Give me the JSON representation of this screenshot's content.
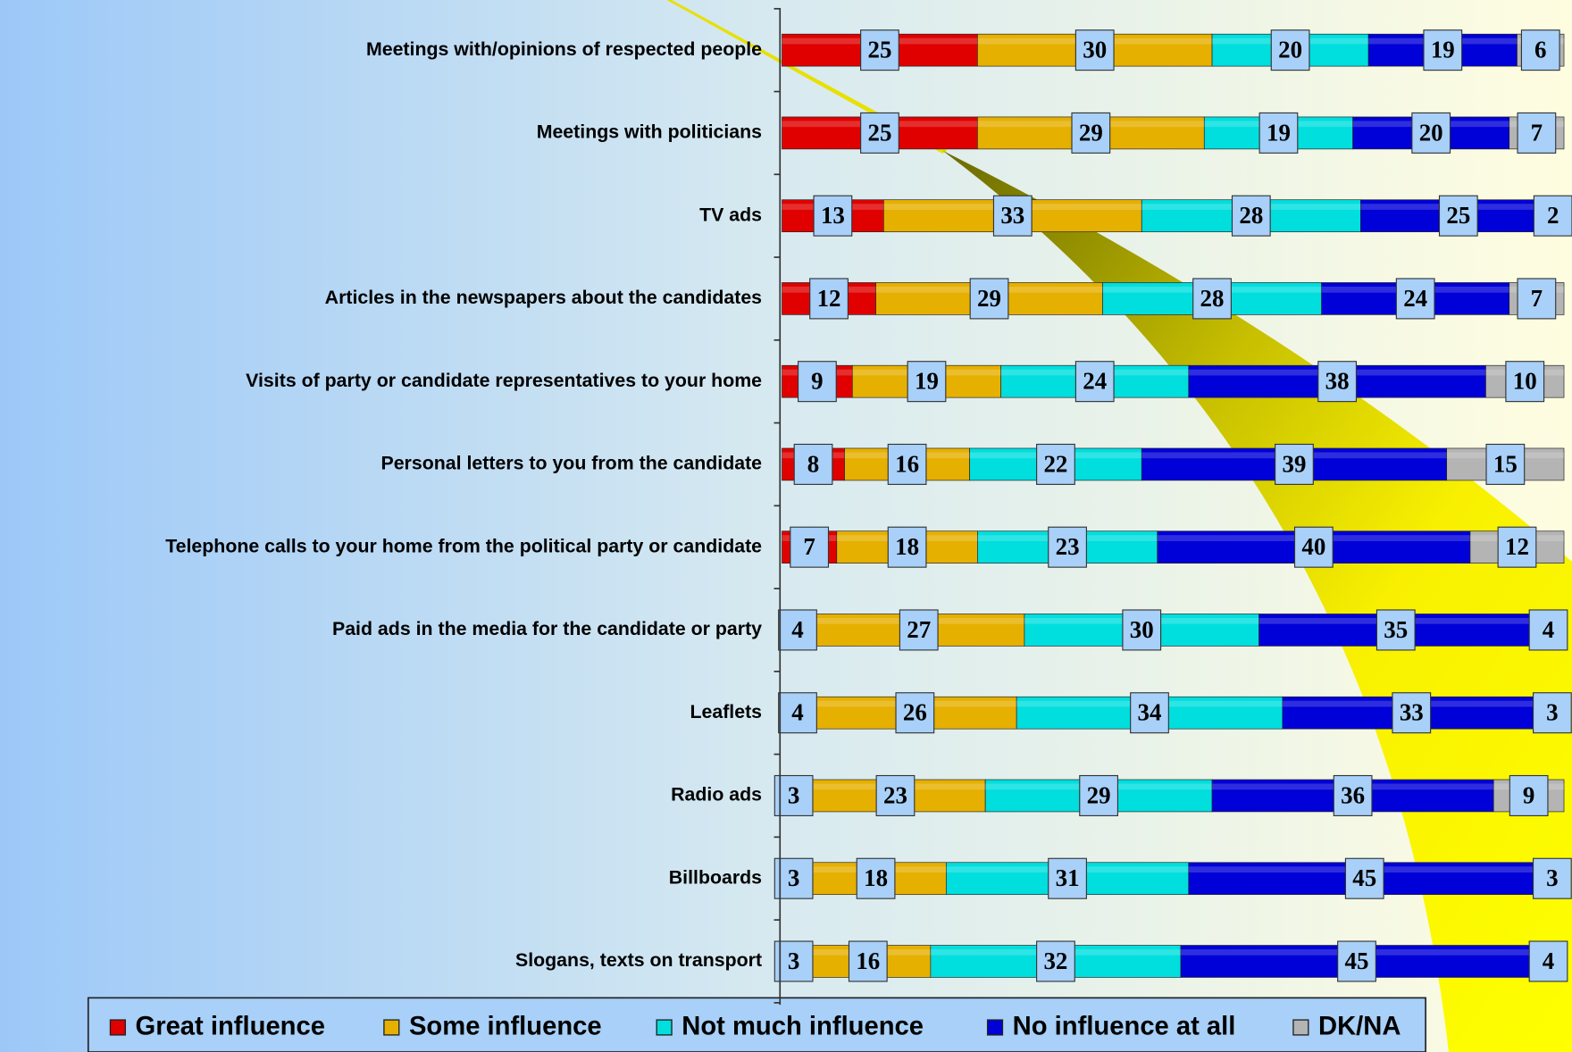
{
  "chart_data": {
    "type": "stacked_bar_horizontal",
    "categories": [
      "Meetings with/opinions of respected people",
      "Meetings with politicians",
      "TV ads",
      "Articles in the newspapers about the candidates",
      "Visits of party or candidate representatives to your home",
      "Personal letters to you from the candidate",
      "Telephone calls to your home from the political party or candidate",
      "Paid ads in the media for the candidate or party",
      "Leaflets",
      "Radio ads",
      "Billboards",
      "Slogans, texts on transport"
    ],
    "series": [
      {
        "name": "Great influence",
        "color": "#e00000",
        "values": [
          25,
          25,
          13,
          12,
          9,
          8,
          7,
          4,
          4,
          3,
          3,
          3
        ]
      },
      {
        "name": "Some influence",
        "color": "#e6b000",
        "values": [
          30,
          29,
          33,
          29,
          19,
          16,
          18,
          27,
          26,
          23,
          18,
          16
        ]
      },
      {
        "name": "Not much influence",
        "color": "#00dede",
        "values": [
          20,
          19,
          28,
          28,
          24,
          22,
          23,
          30,
          34,
          29,
          31,
          32
        ]
      },
      {
        "name": "No influence at all",
        "color": "#0000d8",
        "values": [
          19,
          20,
          25,
          24,
          38,
          39,
          40,
          35,
          33,
          36,
          45,
          45
        ]
      },
      {
        "name": "DK/NA",
        "color": "#b4b4b4",
        "values": [
          6,
          7,
          2,
          7,
          10,
          15,
          12,
          4,
          3,
          9,
          3,
          4
        ]
      }
    ],
    "xlim": [
      0,
      100
    ],
    "legend": "bottom"
  }
}
